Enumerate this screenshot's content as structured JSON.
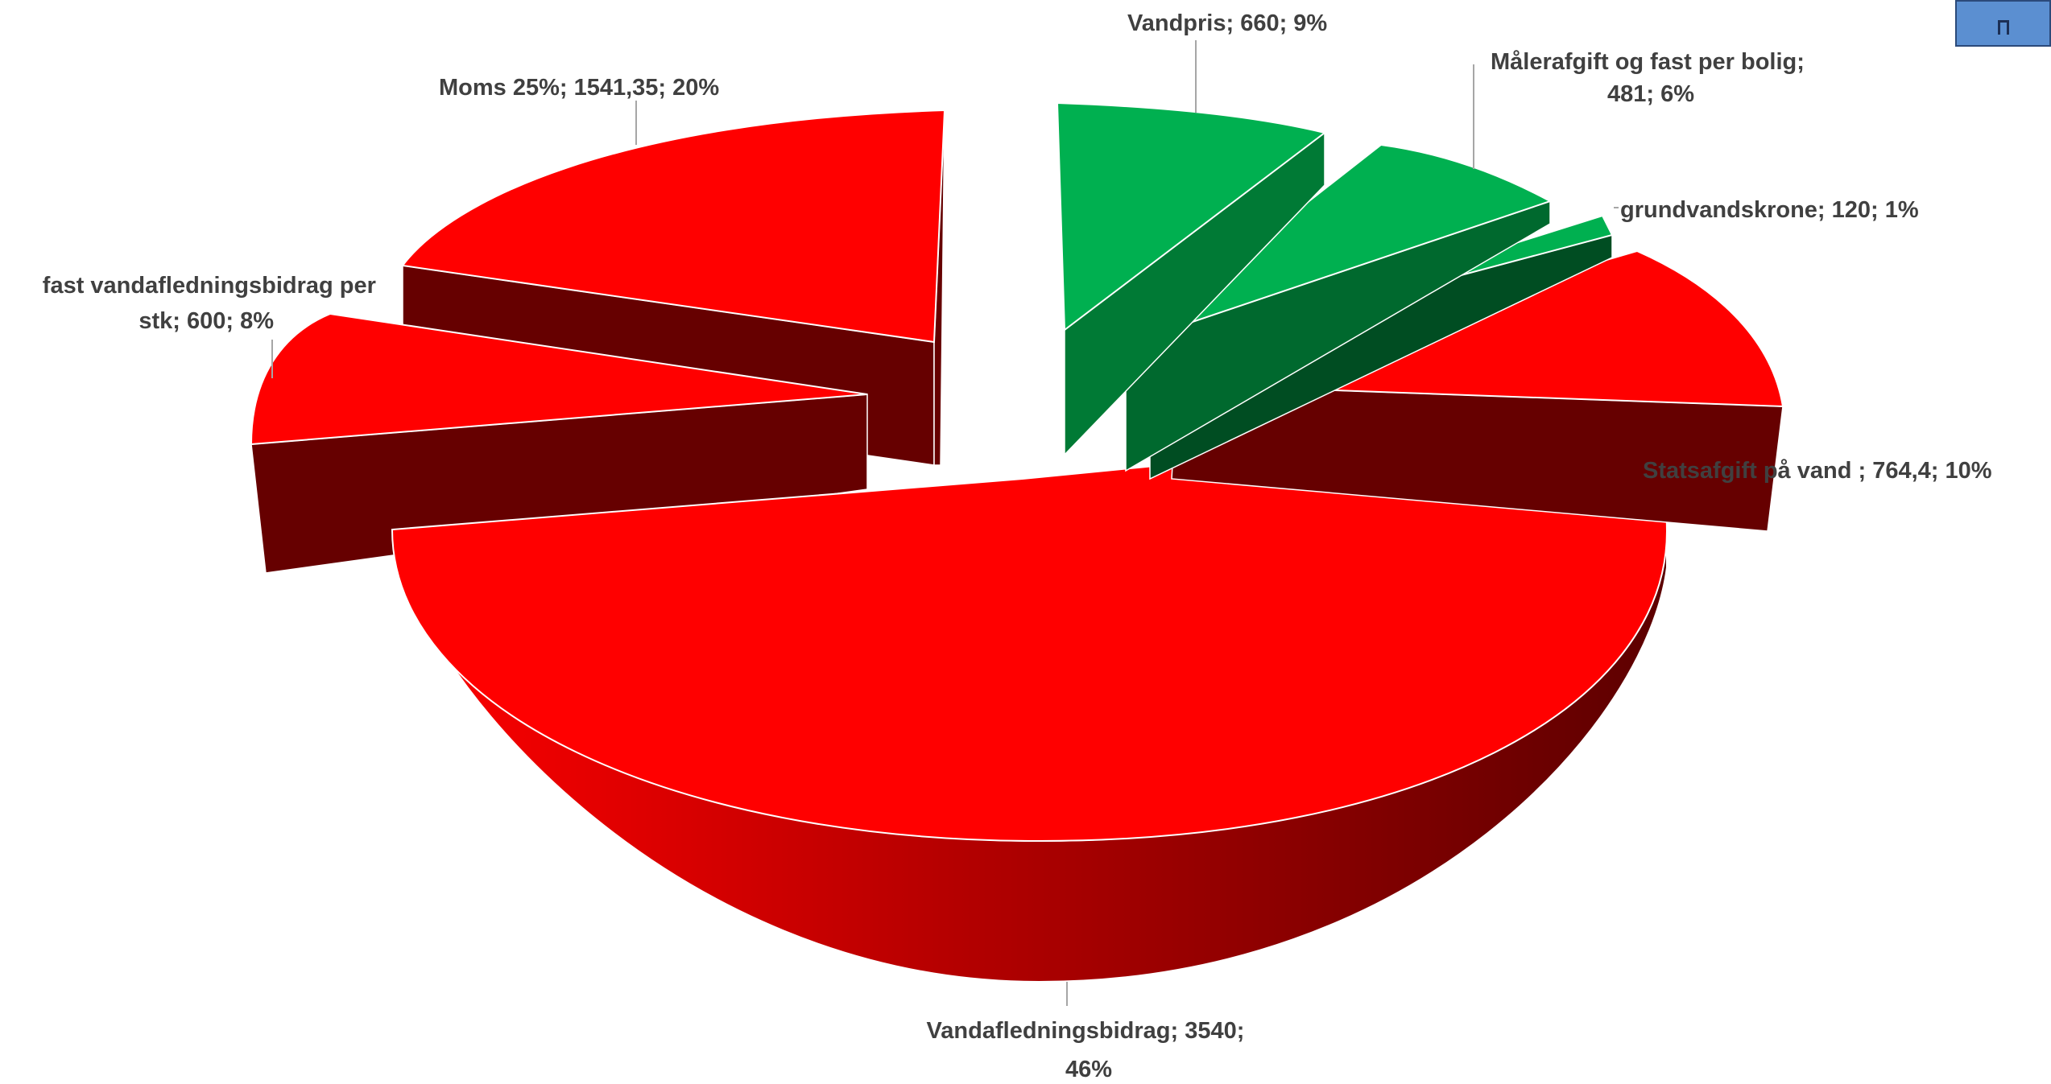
{
  "chart_data": {
    "type": "pie",
    "variant": "3d-exploded",
    "title": "",
    "slices": [
      {
        "label": "Vandpris",
        "value": 660,
        "percent": "9%",
        "color": "#00b050"
      },
      {
        "label": "Målerafgift og fast per bolig",
        "value": 481,
        "percent": "6%",
        "color": "#00b050"
      },
      {
        "label": "grundvandskrone",
        "value": 120,
        "percent": "1%",
        "color": "#00b050"
      },
      {
        "label": "Statsafgift på vand ",
        "value": 764.4,
        "percent": "10%",
        "color": "#ff0000"
      },
      {
        "label": "Vandafledningsbidrag",
        "value": 3540,
        "percent": "46%",
        "color": "#ff0000"
      },
      {
        "label": "fast vandafledningsbidrag per stk",
        "value": 600,
        "percent": "8%",
        "color": "#ff0000"
      },
      {
        "label": "Moms 25%",
        "value": 1541.35,
        "percent": "20%",
        "color": "#ff0000"
      }
    ],
    "labels": [
      {
        "lines": [
          "Vandpris; 660; 9%"
        ]
      },
      {
        "lines": [
          "Målerafgift og fast per bolig;",
          "481; 6%"
        ]
      },
      {
        "lines": [
          "grundvandskrone; 120; 1%"
        ]
      },
      {
        "lines": [
          "Statsafgift på vand ; 764,4; 10%"
        ]
      },
      {
        "lines": [
          "Vandafledningsbidrag; 3540;",
          "46%"
        ]
      },
      {
        "lines": [
          "fast vandafledningsbidrag per",
          "stk; 600; 8%"
        ]
      },
      {
        "lines": [
          "Moms 25%; 1541,35; 20%"
        ]
      }
    ]
  },
  "colors": {
    "green_top": "#00b050",
    "green_side": "#007a35",
    "red_top": "#ff0000",
    "red_side": "#660000"
  },
  "corner_button": {
    "icon": "window-restore-icon"
  }
}
